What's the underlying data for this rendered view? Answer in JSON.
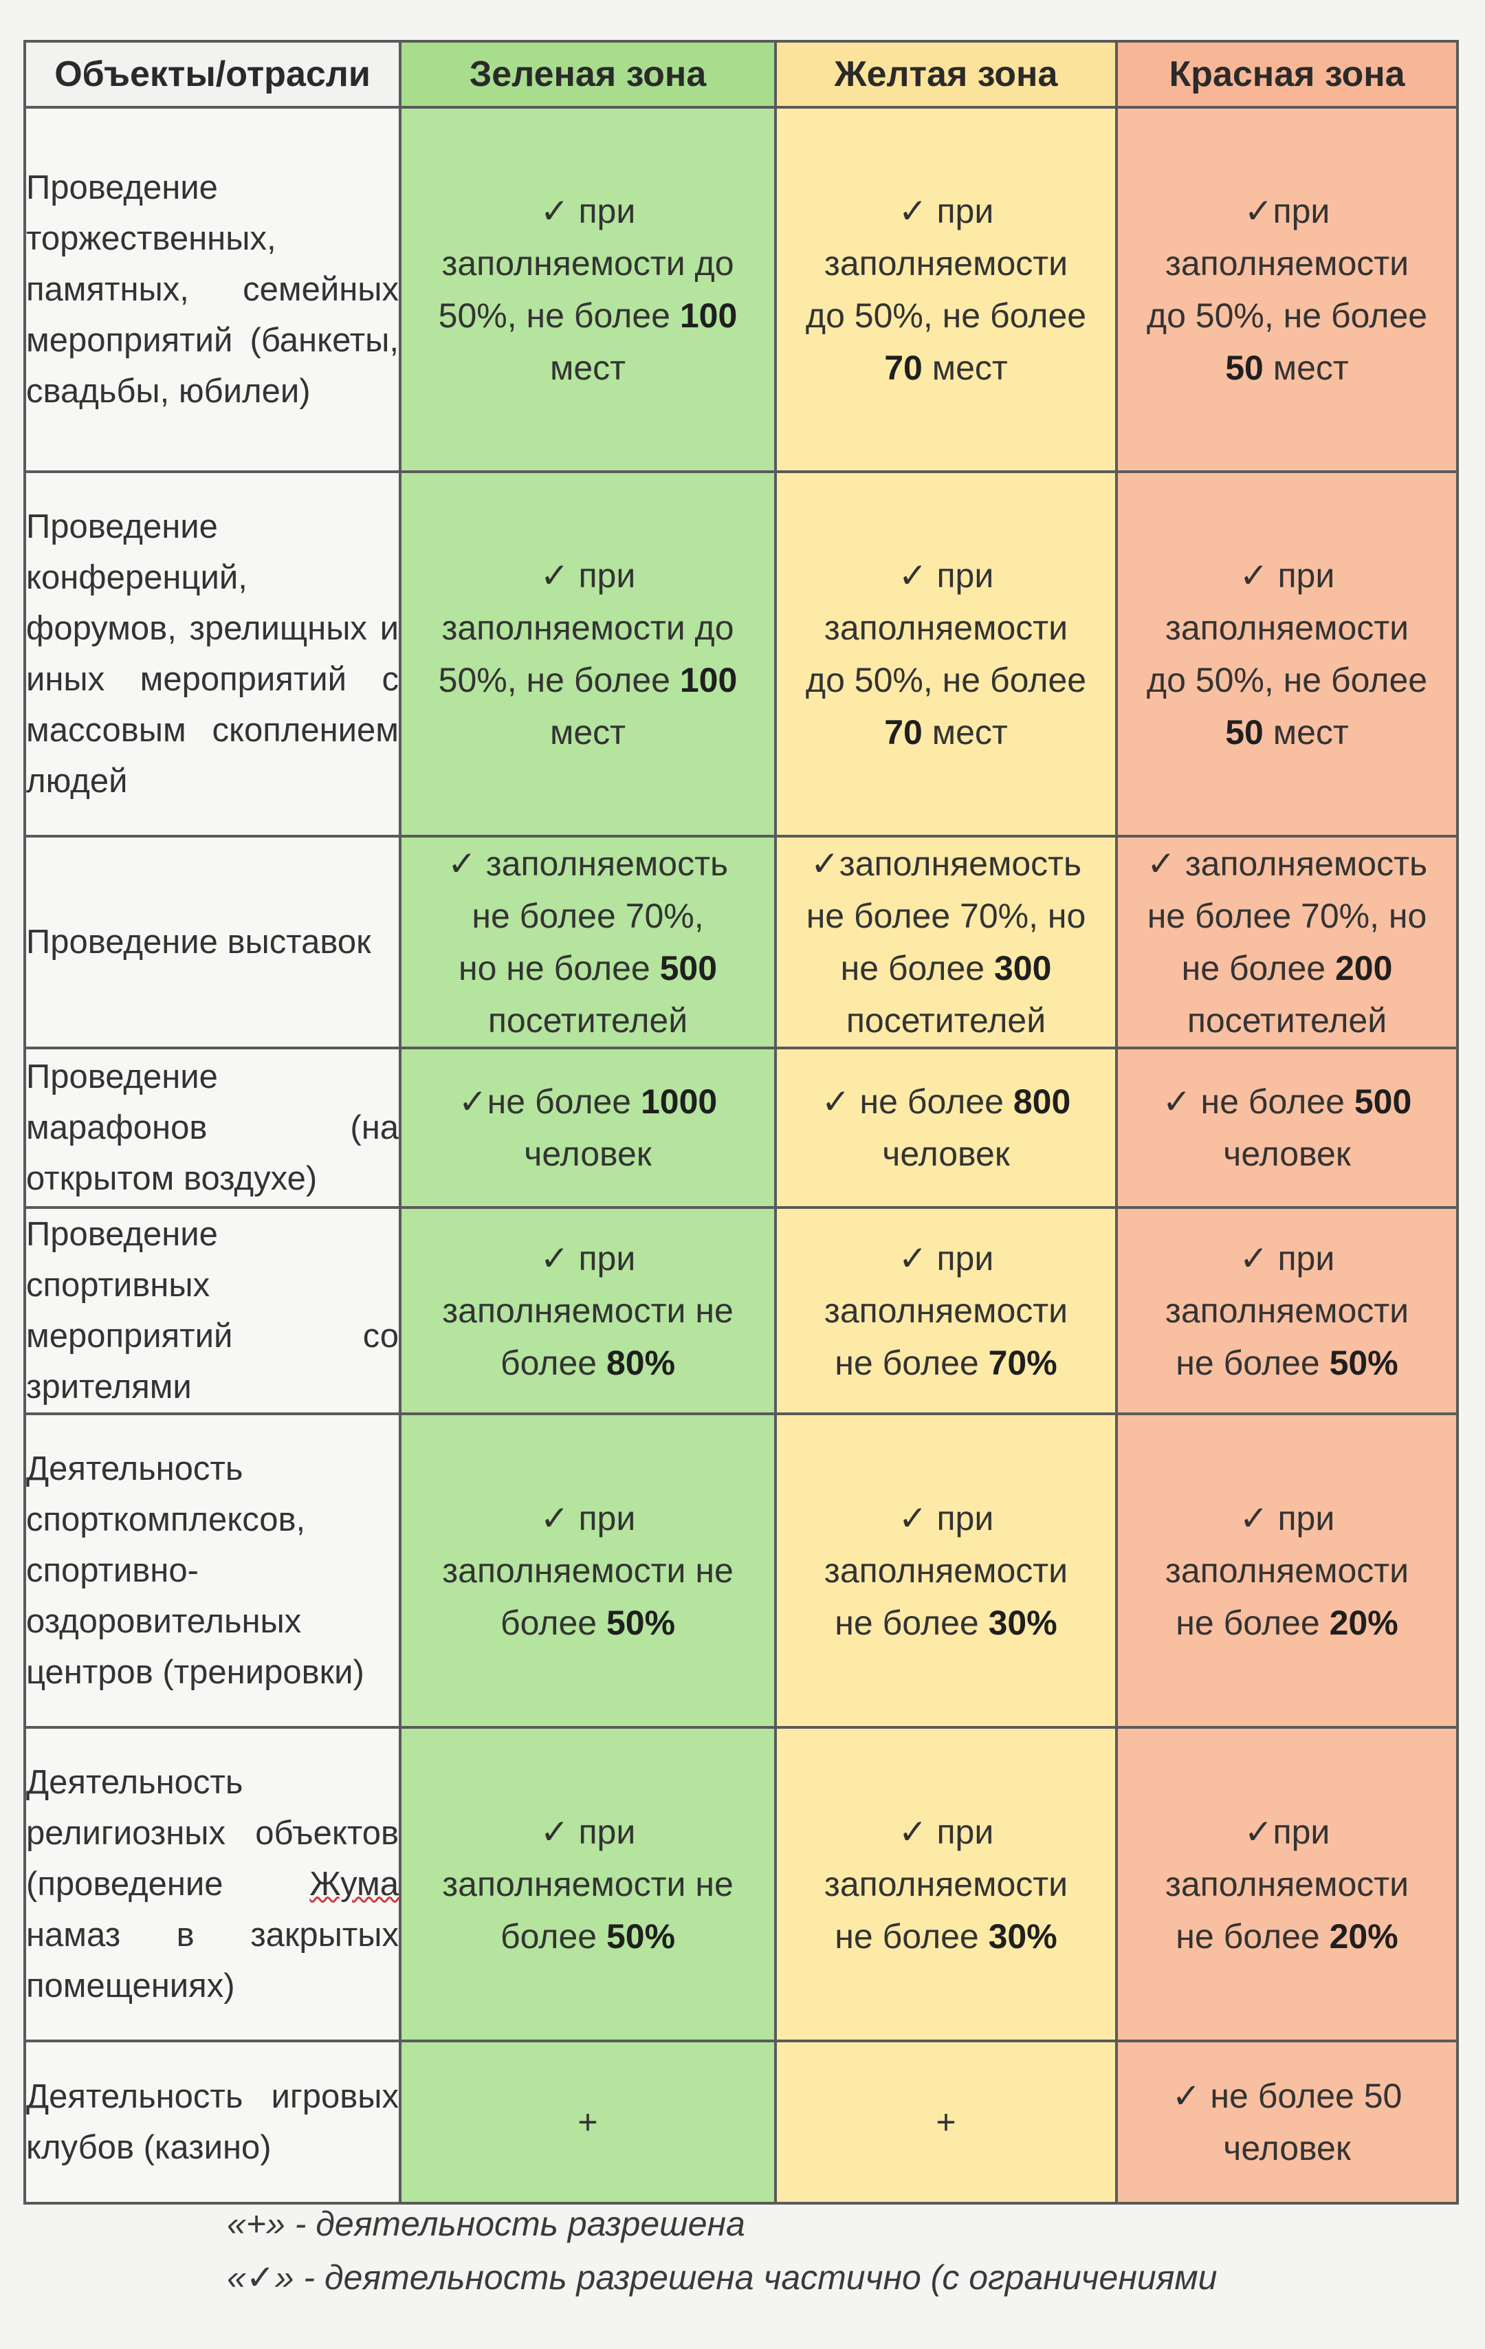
{
  "header": {
    "objects": "Объекты/отрасли",
    "green": "Зеленая зона",
    "yellow": "Желтая зона",
    "red": "Красная зона"
  },
  "rows": [
    {
      "label": "Проведение торжественных, памятных, семейных мероприятий (банкеты, свадьбы, юбилеи)",
      "green": [
        "✓ при",
        "заполняемости до",
        "50%, не более ",
        "100",
        "мест"
      ],
      "yellow": [
        "✓ при",
        "заполняемости",
        "до 50%, не более",
        "70",
        " мест"
      ],
      "red": [
        "✓при",
        "заполняемости",
        "до 50%, не более",
        "50",
        " мест"
      ]
    },
    {
      "label": "Проведение конференций, форумов, зрелищных и иных мероприятий с массовым скоплением людей",
      "green": [
        "✓ при",
        "заполняемости до",
        "50%, не более ",
        "100",
        "мест"
      ],
      "yellow": [
        "✓ при",
        "заполняемости",
        "до 50%, не более",
        "70",
        " мест"
      ],
      "red": [
        "✓ при",
        "заполняемости",
        "до 50%, не более",
        "50",
        " мест"
      ]
    },
    {
      "label": "Проведение выставок",
      "green": [
        "✓ заполняемость",
        "не более 70%,",
        "но не более ",
        "500",
        "посетителей"
      ],
      "yellow": [
        "✓заполняемость",
        "не более 70%, но",
        "не более ",
        "300",
        "посетителей"
      ],
      "red": [
        "✓ заполняемость",
        "не более 70%, но",
        "не более ",
        "200",
        "посетителей"
      ]
    },
    {
      "label": "Проведение марафонов (на открытом воздухе)",
      "green": [
        "✓не более ",
        "1000",
        "человек"
      ],
      "yellow": [
        "✓ не более ",
        "800",
        "человек"
      ],
      "red": [
        "✓ не более ",
        "500",
        "человек"
      ]
    },
    {
      "label": "Проведение спортивных мероприятий со зрителями",
      "green": [
        "✓ при",
        "заполняемости не",
        "более ",
        "80%"
      ],
      "yellow": [
        "✓ при",
        "заполняемости",
        "не более ",
        "70%"
      ],
      "red": [
        "✓ при",
        "заполняемости",
        "не более ",
        "50%"
      ]
    },
    {
      "label": "Деятельность спорткомплексов, спортивно-оздоровительных центров (тренировки)",
      "green": [
        "✓ при",
        "заполняемости не",
        "более ",
        "50%"
      ],
      "yellow": [
        "✓ при",
        "заполняемости",
        "не более ",
        "30%"
      ],
      "red": [
        "✓ при",
        "заполняемости",
        "не более ",
        "20%"
      ]
    },
    {
      "label_before": "Деятельность религиозных объектов (проведение ",
      "label_wavy": "Жума",
      "label_after": " намаз в закрытых помещениях)",
      "green": [
        "✓ при",
        "заполняемости не",
        "более ",
        "50%"
      ],
      "yellow": [
        "✓ при",
        "заполняемости",
        "не более ",
        "30%"
      ],
      "red": [
        "✓при",
        "заполняемости",
        "не более ",
        "20%"
      ]
    },
    {
      "label": "Деятельность игровых клубов (казино)",
      "green": "+",
      "yellow": "+",
      "red": [
        "✓ не более 50",
        "человек"
      ]
    }
  ],
  "legend": {
    "plus": "«+» - деятельность разрешена",
    "check": "«✓» - деятельность разрешена частично (с ограничениями"
  },
  "colors": {
    "green_zone": "#b4e49e",
    "yellow_zone": "#fdeaa7",
    "red_zone": "#f8bfa0"
  }
}
